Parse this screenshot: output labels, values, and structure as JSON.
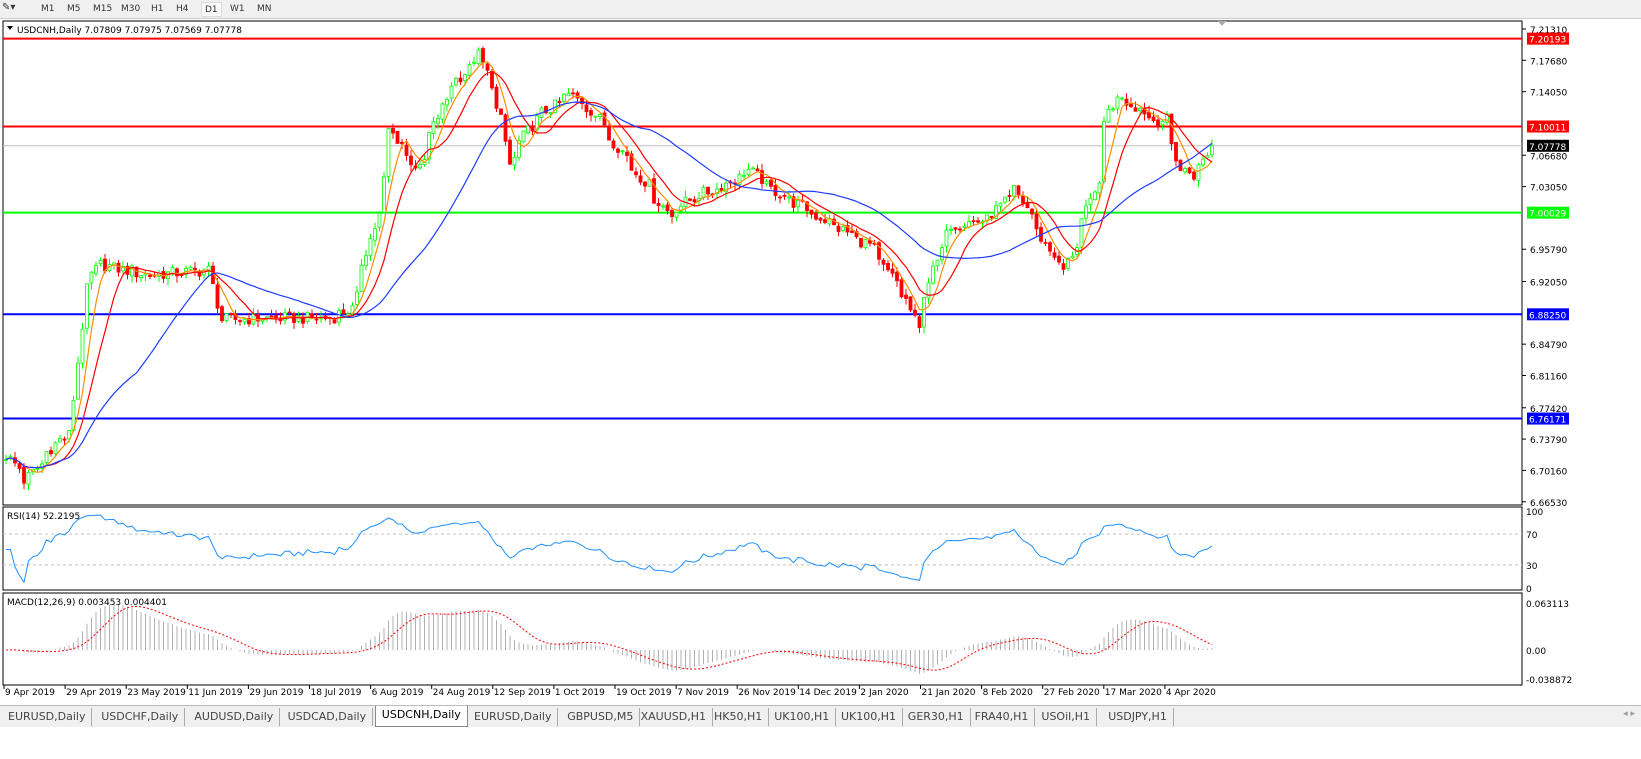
{
  "toolbar": {
    "timeframes": [
      "M1",
      "M5",
      "M15",
      "M30",
      "H1",
      "H4",
      "D1",
      "W1",
      "MN"
    ],
    "active": "D1"
  },
  "chart": {
    "symbol_line": "USDCNH,Daily  7.07809 7.07975 7.07569 7.07778",
    "current_price": "7.07778",
    "price_ticks": [
      "7.21310",
      "7.17680",
      "7.14050",
      "7.06680",
      "7.03050",
      "6.95790",
      "6.92050",
      "6.84790",
      "6.81160",
      "6.77420",
      "6.73790",
      "6.70160",
      "6.66530"
    ],
    "hlines": [
      {
        "price": "7.20193",
        "color": "#ff0000"
      },
      {
        "price": "7.10011",
        "color": "#ff0000"
      },
      {
        "price": "7.00029",
        "color": "#00ff00"
      },
      {
        "price": "6.88250",
        "color": "#0000ff"
      },
      {
        "price": "6.76171",
        "color": "#0000ff"
      }
    ],
    "bull_color": "#00ff00",
    "bear_color": "#ff0000",
    "ma_colors": {
      "fast": "#ff8c00",
      "mid": "#ff0000",
      "slow": "#1e3cff"
    },
    "price_path": [
      [
        "2019-04-09",
        6.719
      ],
      [
        "2019-04-15",
        6.69
      ],
      [
        "2019-04-25",
        6.737
      ],
      [
        "2019-04-29",
        6.743
      ],
      [
        "2019-05-03",
        6.911
      ],
      [
        "2019-05-08",
        6.94
      ],
      [
        "2019-05-23",
        6.928
      ],
      [
        "2019-06-11",
        6.934
      ],
      [
        "2019-06-14",
        6.876
      ],
      [
        "2019-06-29",
        6.878
      ],
      [
        "2019-07-18",
        6.878
      ],
      [
        "2019-07-25",
        6.888
      ],
      [
        "2019-08-05",
        7.038
      ],
      [
        "2019-08-06",
        7.096
      ],
      [
        "2019-08-15",
        7.05
      ],
      [
        "2019-08-24",
        7.142
      ],
      [
        "2019-09-03",
        7.183
      ],
      [
        "2019-09-10",
        7.108
      ],
      [
        "2019-09-12",
        7.056
      ],
      [
        "2019-09-20",
        7.108
      ],
      [
        "2019-10-01",
        7.137
      ],
      [
        "2019-10-08",
        7.119
      ],
      [
        "2019-10-19",
        7.061
      ],
      [
        "2019-11-01",
        6.998
      ],
      [
        "2019-11-07",
        7.015
      ],
      [
        "2019-11-18",
        7.032
      ],
      [
        "2019-11-26",
        7.05
      ],
      [
        "2019-12-01",
        7.032
      ],
      [
        "2019-12-14",
        7.003
      ],
      [
        "2020-01-02",
        6.963
      ],
      [
        "2020-01-14",
        6.899
      ],
      [
        "2020-01-17",
        6.864
      ],
      [
        "2020-01-21",
        6.922
      ],
      [
        "2020-01-27",
        6.986
      ],
      [
        "2020-02-08",
        6.992
      ],
      [
        "2020-02-17",
        7.027
      ],
      [
        "2020-02-27",
        6.957
      ],
      [
        "2020-03-03",
        6.934
      ],
      [
        "2020-03-12",
        7.021
      ],
      [
        "2020-03-17",
        7.119
      ],
      [
        "2020-03-20",
        7.137
      ],
      [
        "2020-03-31",
        7.108
      ],
      [
        "2020-04-04",
        7.108
      ],
      [
        "2020-04-08",
        7.05
      ],
      [
        "2020-04-13",
        7.044
      ],
      [
        "2020-04-17",
        7.0778
      ]
    ]
  },
  "rsi": {
    "label": "RSI(14) 52.2195",
    "ticks": [
      "100",
      "70",
      "30",
      "0"
    ],
    "color": "#1e90ff"
  },
  "macd": {
    "label": "MACD(12,26,9) 0.003453 0.004401",
    "ticks": [
      "0.063113",
      "0.00",
      "-0.038872"
    ]
  },
  "date_labels": [
    "9 Apr 2019",
    "29 Apr 2019",
    "23 May 2019",
    "11 Jun 2019",
    "29 Jun 2019",
    "18 Jul 2019",
    "6 Aug 2019",
    "24 Aug 2019",
    "12 Sep 2019",
    "1 Oct 2019",
    "19 Oct 2019",
    "7 Nov 2019",
    "26 Nov 2019",
    "14 Dec 2019",
    "2 Jan 2020",
    "21 Jan 2020",
    "8 Feb 2020",
    "27 Feb 2020",
    "17 Mar 2020",
    "4 Apr 2020"
  ],
  "tabs": [
    "EURUSD,Daily",
    "USDCHF,Daily",
    "AUDUSD,Daily",
    "USDCAD,Daily",
    "USDCNH,Daily",
    "EURUSD,Daily",
    "GBPUSD,M5",
    "XAUUSD,H1",
    "HK50,H1",
    "UK100,H1",
    "UK100,H1",
    "GER30,H1",
    "FRA40,H1",
    "USOil,H1",
    "USDJPY,H1"
  ],
  "active_tab": "USDCNH,Daily"
}
